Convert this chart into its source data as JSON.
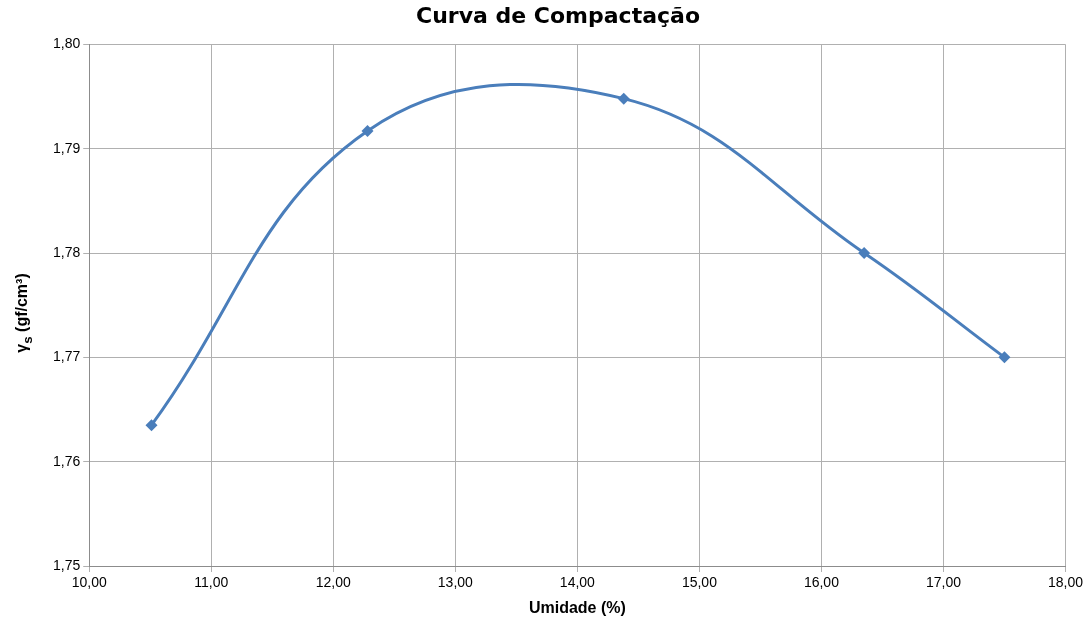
{
  "chart_data": {
    "type": "line",
    "title": "Curva de Compactação",
    "xlabel": "Umidade (%)",
    "ylabel": "γ$_{s}$ (gf/cm³)",
    "x": [
      10.51,
      12.28,
      14.38,
      16.35,
      17.5
    ],
    "series": [
      {
        "color": "#4a7ebb",
        "values": [
          1.7635,
          1.7917,
          1.7948,
          1.78,
          1.77
        ]
      }
    ],
    "xlim": [
      10,
      18
    ],
    "xticks": [
      {
        "value": 10,
        "label": "10,00"
      },
      {
        "value": 11,
        "label": "11,00"
      },
      {
        "value": 12,
        "label": "12,00"
      },
      {
        "value": 13,
        "label": "13,00"
      },
      {
        "value": 14,
        "label": "14,00"
      },
      {
        "value": 15,
        "label": "15,00"
      },
      {
        "value": 16,
        "label": "16,00"
      },
      {
        "value": 17,
        "label": "17,00"
      },
      {
        "value": 18,
        "label": "18,00"
      }
    ],
    "ylim": [
      1.75,
      1.8
    ],
    "yticks": [
      {
        "value": 1.75,
        "label": "1,75"
      },
      {
        "value": 1.76,
        "label": "1,76"
      },
      {
        "value": 1.77,
        "label": "1,77"
      },
      {
        "value": 1.78,
        "label": "1,78"
      },
      {
        "value": 1.79,
        "label": "1,79"
      },
      {
        "value": 1.8,
        "label": "1,80"
      }
    ],
    "grid": true,
    "legend": false,
    "marker": "diamond",
    "line_style": "solid"
  }
}
